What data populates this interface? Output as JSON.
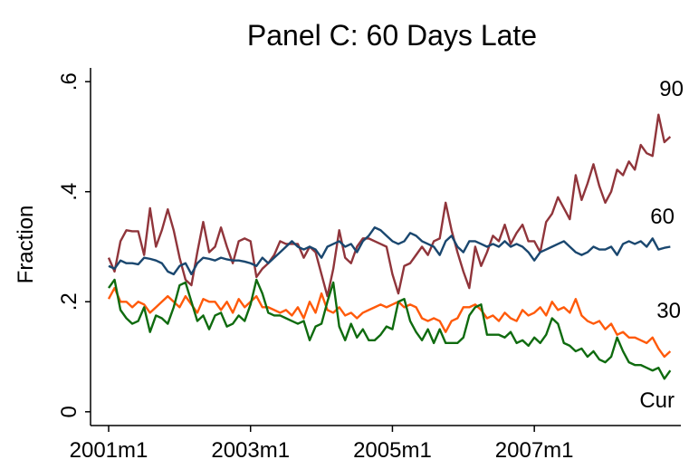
{
  "chart_data": {
    "type": "line",
    "title": "Panel C: 60 Days Late",
    "ylabel": "Fraction",
    "categories": [
      "2001m1",
      null,
      null,
      null,
      null,
      null,
      null,
      null,
      null,
      null,
      null,
      null,
      null,
      null,
      null,
      null,
      null,
      null,
      null,
      null,
      null,
      null,
      null,
      null,
      "2003m1",
      null,
      null,
      null,
      null,
      null,
      null,
      null,
      null,
      null,
      null,
      null,
      null,
      null,
      null,
      null,
      null,
      null,
      null,
      null,
      null,
      null,
      null,
      null,
      "2005m1",
      null,
      null,
      null,
      null,
      null,
      null,
      null,
      null,
      null,
      null,
      null,
      null,
      null,
      null,
      null,
      null,
      null,
      null,
      null,
      null,
      null,
      null,
      null,
      "2007m1",
      null,
      null,
      null,
      null,
      null,
      null,
      null,
      null,
      null,
      null,
      null,
      null,
      null,
      null,
      null,
      null,
      null,
      null,
      null,
      null,
      null,
      null,
      null
    ],
    "ylim": [
      -0.025,
      0.625
    ],
    "yticks": [
      0,
      {
        "value": 0.2,
        "label": ".2"
      },
      {
        "value": 0.4,
        "label": ".4"
      },
      {
        "value": 0.6,
        "label": ".6"
      }
    ],
    "grid": false,
    "series": [
      {
        "name": "90",
        "color": "#90353b",
        "values": [
          0.28,
          0.255,
          0.31,
          0.33,
          0.328,
          0.328,
          0.285,
          0.37,
          0.3,
          0.33,
          0.368,
          0.33,
          0.28,
          0.24,
          0.23,
          0.29,
          0.345,
          0.29,
          0.3,
          0.335,
          0.3,
          0.27,
          0.31,
          0.315,
          0.31,
          0.245,
          0.26,
          0.27,
          0.285,
          0.31,
          0.305,
          0.305,
          0.305,
          0.28,
          0.3,
          0.29,
          0.25,
          0.21,
          0.26,
          0.33,
          0.28,
          0.27,
          0.3,
          0.315,
          0.315,
          0.31,
          0.305,
          0.3,
          0.25,
          0.215,
          0.265,
          0.27,
          0.285,
          0.3,
          0.285,
          0.31,
          0.315,
          0.38,
          0.33,
          0.29,
          0.255,
          0.225,
          0.3,
          0.265,
          0.29,
          0.32,
          0.31,
          0.34,
          0.305,
          0.325,
          0.34,
          0.31,
          0.31,
          0.29,
          0.345,
          0.36,
          0.39,
          0.37,
          0.35,
          0.43,
          0.385,
          0.415,
          0.45,
          0.41,
          0.38,
          0.4,
          0.44,
          0.43,
          0.455,
          0.44,
          0.485,
          0.47,
          0.465,
          0.54,
          0.49,
          0.5
        ]
      },
      {
        "name": "60",
        "color": "#1a476f",
        "values": [
          0.265,
          0.26,
          0.275,
          0.27,
          0.27,
          0.268,
          0.28,
          0.278,
          0.275,
          0.27,
          0.255,
          0.25,
          0.265,
          0.27,
          0.25,
          0.27,
          0.28,
          0.278,
          0.275,
          0.28,
          0.277,
          0.275,
          0.275,
          0.273,
          0.27,
          0.265,
          0.28,
          0.27,
          0.28,
          0.29,
          0.3,
          0.31,
          0.3,
          0.295,
          0.3,
          0.295,
          0.28,
          0.3,
          0.305,
          0.31,
          0.3,
          0.305,
          0.29,
          0.31,
          0.32,
          0.335,
          0.33,
          0.32,
          0.31,
          0.305,
          0.31,
          0.325,
          0.32,
          0.31,
          0.305,
          0.3,
          0.285,
          0.31,
          0.32,
          0.3,
          0.29,
          0.31,
          0.31,
          0.305,
          0.3,
          0.305,
          0.3,
          0.31,
          0.3,
          0.305,
          0.3,
          0.29,
          0.275,
          0.29,
          0.295,
          0.3,
          0.305,
          0.31,
          0.3,
          0.29,
          0.285,
          0.29,
          0.3,
          0.295,
          0.295,
          0.3,
          0.285,
          0.305,
          0.31,
          0.305,
          0.31,
          0.3,
          0.315,
          0.295,
          0.298,
          0.3
        ]
      },
      {
        "name": "30",
        "color": "#ff5a0a",
        "values": [
          0.205,
          0.225,
          0.2,
          0.2,
          0.19,
          0.2,
          0.195,
          0.18,
          0.19,
          0.2,
          0.21,
          0.2,
          0.19,
          0.21,
          0.195,
          0.18,
          0.205,
          0.2,
          0.2,
          0.185,
          0.2,
          0.18,
          0.205,
          0.19,
          0.2,
          0.21,
          0.19,
          0.19,
          0.185,
          0.18,
          0.185,
          0.175,
          0.19,
          0.17,
          0.2,
          0.18,
          0.215,
          0.185,
          0.18,
          0.19,
          0.175,
          0.18,
          0.17,
          0.18,
          0.185,
          0.19,
          0.195,
          0.19,
          0.195,
          0.2,
          0.19,
          0.195,
          0.19,
          0.17,
          0.165,
          0.17,
          0.165,
          0.145,
          0.165,
          0.17,
          0.19,
          0.19,
          0.195,
          0.185,
          0.17,
          0.175,
          0.165,
          0.18,
          0.17,
          0.165,
          0.185,
          0.175,
          0.18,
          0.19,
          0.175,
          0.2,
          0.185,
          0.19,
          0.18,
          0.205,
          0.175,
          0.165,
          0.16,
          0.165,
          0.15,
          0.16,
          0.14,
          0.145,
          0.135,
          0.135,
          0.13,
          0.125,
          0.135,
          0.115,
          0.1,
          0.11
        ]
      },
      {
        "name": "Cur",
        "color": "#0f6b0f",
        "values": [
          0.225,
          0.24,
          0.185,
          0.17,
          0.16,
          0.165,
          0.19,
          0.145,
          0.175,
          0.17,
          0.16,
          0.19,
          0.23,
          0.235,
          0.2,
          0.165,
          0.175,
          0.15,
          0.175,
          0.18,
          0.155,
          0.16,
          0.175,
          0.165,
          0.195,
          0.24,
          0.215,
          0.18,
          0.175,
          0.175,
          0.17,
          0.165,
          0.16,
          0.165,
          0.13,
          0.155,
          0.16,
          0.2,
          0.235,
          0.155,
          0.13,
          0.16,
          0.135,
          0.15,
          0.13,
          0.13,
          0.14,
          0.155,
          0.15,
          0.2,
          0.205,
          0.165,
          0.145,
          0.13,
          0.15,
          0.125,
          0.15,
          0.125,
          0.125,
          0.125,
          0.135,
          0.175,
          0.19,
          0.195,
          0.14,
          0.14,
          0.14,
          0.135,
          0.145,
          0.125,
          0.13,
          0.12,
          0.135,
          0.125,
          0.14,
          0.17,
          0.16,
          0.125,
          0.12,
          0.11,
          0.115,
          0.1,
          0.11,
          0.095,
          0.09,
          0.1,
          0.135,
          0.11,
          0.09,
          0.085,
          0.085,
          0.08,
          0.075,
          0.08,
          0.06,
          0.075
        ]
      }
    ]
  }
}
